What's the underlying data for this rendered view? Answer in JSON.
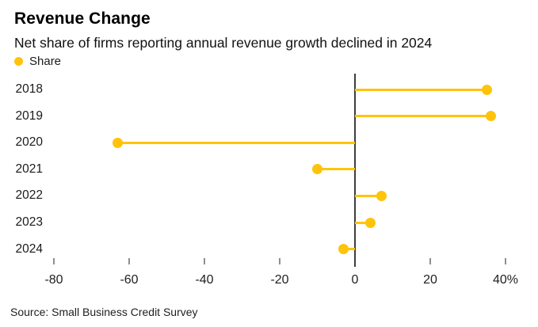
{
  "header": {
    "title": "Revenue Change",
    "subtitle": "Net share of firms reporting annual revenue growth declined in 2024"
  },
  "legend": {
    "label": "Share"
  },
  "source": "Source: Small Business Credit Survey",
  "colors": {
    "accent": "#FFC30B",
    "axis_line": "#3D3D3D",
    "tick_mark": "#8F8F8F",
    "background": "#FFFFFF"
  },
  "chart_data": {
    "type": "bar",
    "variant": "lollipop",
    "orientation": "horizontal",
    "title": "Revenue Change",
    "subtitle": "Net share of firms reporting annual revenue growth declined in 2024",
    "categories": [
      "2018",
      "2019",
      "2020",
      "2021",
      "2022",
      "2023",
      "2024"
    ],
    "series": [
      {
        "name": "Share",
        "values": [
          35,
          36,
          -63,
          -10,
          7,
          4,
          -3
        ]
      }
    ],
    "unit": "%",
    "xlabel": "",
    "ylabel": "",
    "xlim": [
      -80,
      40
    ],
    "x_ticks": [
      -80,
      -60,
      -40,
      -20,
      0,
      20,
      40
    ],
    "x_tick_labels": [
      "-80",
      "-60",
      "-40",
      "-20",
      "0",
      "20",
      "40%"
    ],
    "grid": false,
    "legend_position": "top-left",
    "source": "Source: Small Business Credit Survey"
  }
}
